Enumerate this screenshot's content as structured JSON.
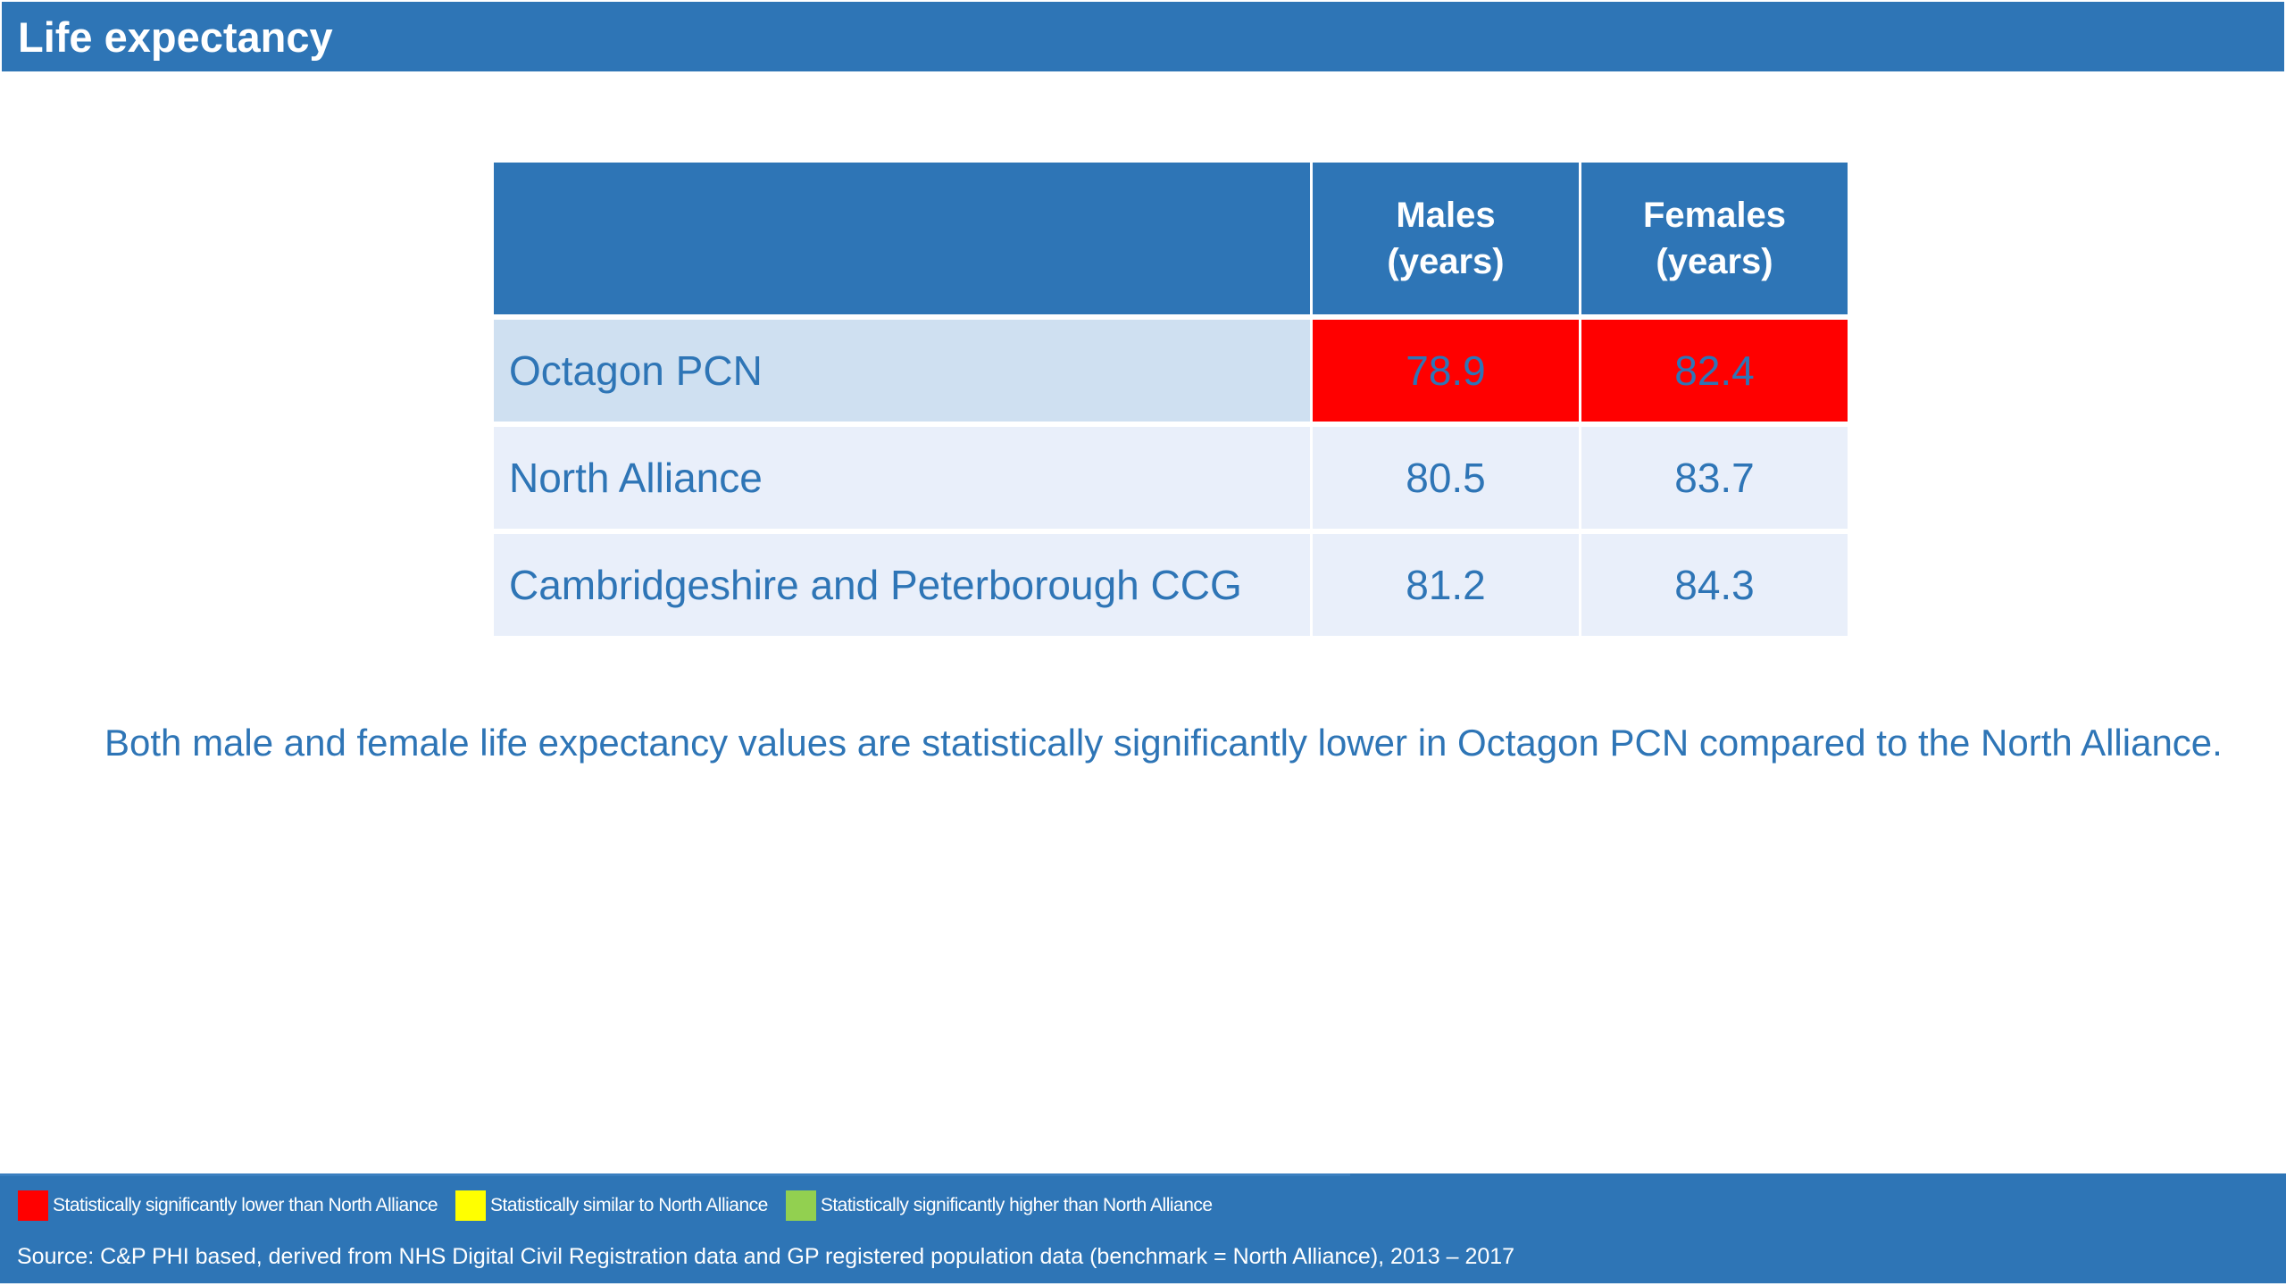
{
  "title": "Life expectancy",
  "table": {
    "header": {
      "blank": "",
      "males_line1": "Males",
      "males_line2": "(years)",
      "females_line1": "Females",
      "females_line2": "(years)"
    },
    "rows": [
      {
        "area": "Octagon PCN",
        "males": "78.9",
        "females": "82.4",
        "status": "significantly-lower"
      },
      {
        "area": "North Alliance",
        "males": "80.5",
        "females": "83.7",
        "status": "benchmark"
      },
      {
        "area": "Cambridgeshire and Peterborough CCG",
        "males": "81.2",
        "females": "84.3",
        "status": "none"
      }
    ]
  },
  "summary": "Both male and female life expectancy values are statistically significantly lower in Octagon PCN compared to the North Alliance.",
  "legend": [
    {
      "label": "Statistically significantly lower than North Alliance",
      "color": "#ff0000"
    },
    {
      "label": "Statistically similar to North Alliance",
      "color": "#ffff00"
    },
    {
      "label": "Statistically significantly higher than North Alliance",
      "color": "#92d050"
    }
  ],
  "source": "Source: C&P PHI based, derived from NHS Digital Civil Registration data and GP registered population data (benchmark = North Alliance), 2013 – 2017",
  "colors": {
    "brand_blue": "#2e75b6",
    "significantly_lower": "#ff0000",
    "row_highlight": "#cfe0f1",
    "row_normal": "#e9effa"
  }
}
